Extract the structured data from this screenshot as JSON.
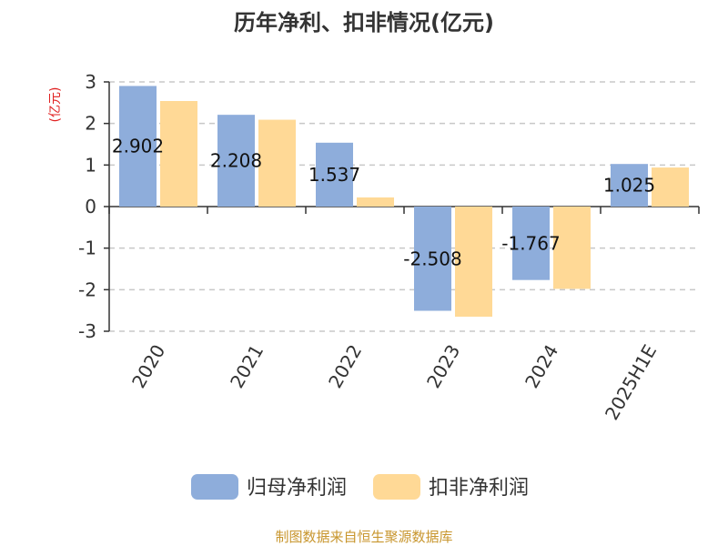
{
  "colors": {
    "series1": "#8EADDB",
    "series2": "#FFD996",
    "unit": "#E02020",
    "source": "#C8962E",
    "grid": "#C8C8C8",
    "axis": "#333333"
  },
  "chart_data": {
    "type": "bar",
    "title": "历年净利、扣非情况(亿元)",
    "ylabel": "(亿元)",
    "ylim": [
      -3,
      3
    ],
    "yticks": [
      3,
      2,
      1,
      0,
      -1,
      -2,
      -3
    ],
    "ytick_labels": [
      "3",
      "2",
      "1",
      "0",
      "-1",
      "-2",
      "-3"
    ],
    "grid": true,
    "legend": "bottom",
    "categories": [
      "2020",
      "2021",
      "2022",
      "2023",
      "2024",
      "2025H1E"
    ],
    "series": [
      {
        "name": "归母净利润",
        "values": [
          2.902,
          2.208,
          1.537,
          -2.508,
          -1.767,
          1.025
        ],
        "labels": [
          "2.902",
          "2.208",
          "1.537",
          "-2.508",
          "-1.767",
          "1.025"
        ]
      },
      {
        "name": "扣非净利润",
        "values": [
          2.54,
          2.09,
          0.22,
          -2.65,
          -1.98,
          0.94
        ]
      }
    ]
  },
  "footer": {
    "source": "制图数据来自恒生聚源数据库"
  }
}
